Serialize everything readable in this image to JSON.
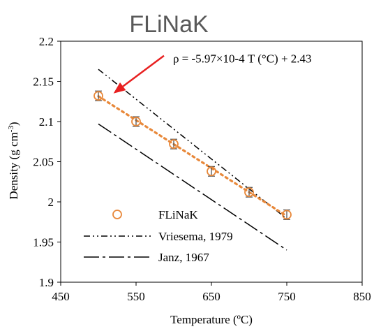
{
  "chart_data": {
    "type": "scatter",
    "title": "FLiNaK",
    "xlabel": "Temperature (ºC)",
    "ylabel": "Density (g cm-3)",
    "ylabel_main": "Density (g cm",
    "ylabel_sup": "-3",
    "ylabel_close": ")",
    "xlim": [
      450,
      850
    ],
    "ylim": [
      1.9,
      2.2
    ],
    "x_ticks": [
      450,
      550,
      650,
      750,
      850
    ],
    "x_tick_labels": [
      "450",
      "550",
      "650",
      "750",
      "850"
    ],
    "y_ticks": [
      1.9,
      1.95,
      2.0,
      2.05,
      2.1,
      2.15,
      2.2
    ],
    "y_tick_labels": [
      "1.9",
      "1.95",
      "2",
      "2.05",
      "2.1",
      "2.15",
      "2.2"
    ],
    "grid": false,
    "legend_position": "bottom-left",
    "series": [
      {
        "name": "FLiNaK",
        "kind": "points",
        "color": "#E8883A",
        "x": [
          500,
          550,
          600,
          650,
          700,
          750
        ],
        "y": [
          2.132,
          2.1,
          2.072,
          2.038,
          2.012,
          1.984
        ],
        "error": [
          0.006,
          0.006,
          0.006,
          0.006,
          0.006,
          0.006
        ]
      },
      {
        "name": "Vriesema, 1979",
        "kind": "line",
        "style": "dash-dot-dot",
        "color": "#000000",
        "x": [
          500,
          750
        ],
        "y": [
          2.165,
          1.979
        ]
      },
      {
        "name": "Janz, 1967",
        "kind": "line",
        "style": "long-dash-dot",
        "color": "#000000",
        "x": [
          500,
          750
        ],
        "y": [
          2.097,
          1.94
        ]
      }
    ],
    "fit_line": {
      "color": "#E8883A",
      "style": "dotted",
      "x": [
        500,
        750
      ],
      "y": [
        2.1315,
        1.9823
      ]
    },
    "annotation": {
      "text": "ρ = -5.97×10-4 T (°C) + 2.43",
      "arrow_color": "#E82020",
      "arrow_tail": [
        587,
        2.182
      ],
      "arrow_head": [
        520,
        2.135
      ]
    }
  }
}
